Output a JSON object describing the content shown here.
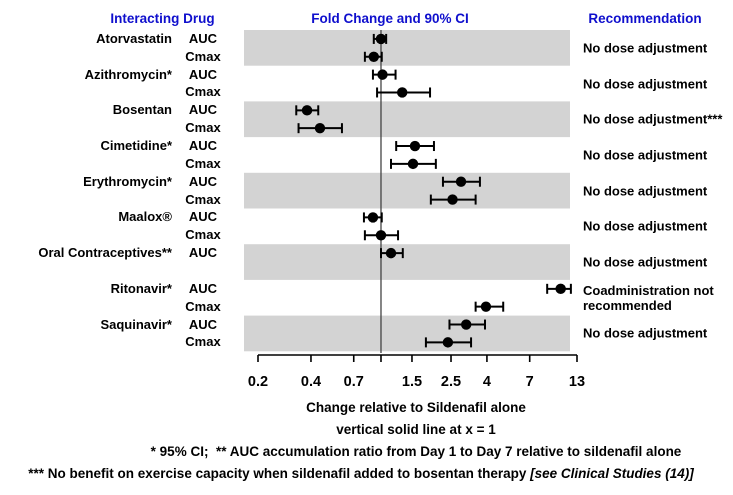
{
  "colors": {
    "header_text": "#0f0fcd",
    "band": "#d3d3d3",
    "data_black": "#000000",
    "ref_line": "#444444"
  },
  "headers": {
    "interacting_drug": "Interacting Drug",
    "recommendation": "Recommendation"
  },
  "captions": {
    "xlabel": "Change relative to Sildenafil alone",
    "ref_note": "vertical solid line at x = 1"
  },
  "footnotes": {
    "line1": "* 95% CI;  ** AUC accumulation ratio from Day 1 to Day 7 relative to sildenafil alone",
    "line2_main": "*** No benefit on exercise capacity when sildenafil added to bosentan therapy ",
    "line2_italic": "[see Clinical Studies (14)]"
  },
  "chart_data": {
    "type": "scatter",
    "subtype": "forest-plot-with-error-bars",
    "title": "Fold Change and 90% CI",
    "xlabel": "Change relative to Sildenafil alone",
    "x_scale": "log",
    "x_range": [
      0.2,
      13
    ],
    "x_ticks": [
      0.2,
      0.4,
      0.7,
      1,
      1.5,
      2.5,
      4,
      7,
      13
    ],
    "x_tick_labels": [
      "0.2",
      "0.4",
      "0.7",
      "",
      "1.5",
      "2.5",
      "4",
      "7",
      "13"
    ],
    "ref_line_x": 1,
    "grid": false,
    "legend": "none",
    "groups": [
      {
        "drug": "Atorvastatin",
        "shaded": true,
        "recommendation": "No dose adjustment",
        "rows": [
          {
            "metric": "AUC",
            "fold_change": 1.0,
            "ci_low": 0.91,
            "ci_high": 1.07
          },
          {
            "metric": "Cmax",
            "fold_change": 0.91,
            "ci_low": 0.81,
            "ci_high": 1.01
          }
        ]
      },
      {
        "drug": "Azithromycin*",
        "shaded": false,
        "recommendation": "No dose adjustment",
        "rows": [
          {
            "metric": "AUC",
            "fold_change": 1.02,
            "ci_low": 0.9,
            "ci_high": 1.21
          },
          {
            "metric": "Cmax",
            "fold_change": 1.32,
            "ci_low": 0.95,
            "ci_high": 1.9
          }
        ]
      },
      {
        "drug": "Bosentan",
        "shaded": true,
        "recommendation": "No dose adjustment***",
        "rows": [
          {
            "metric": "AUC",
            "fold_change": 0.38,
            "ci_low": 0.33,
            "ci_high": 0.44
          },
          {
            "metric": "Cmax",
            "fold_change": 0.45,
            "ci_low": 0.34,
            "ci_high": 0.6
          }
        ]
      },
      {
        "drug": "Cimetidine*",
        "shaded": false,
        "recommendation": "No dose adjustment",
        "rows": [
          {
            "metric": "AUC",
            "fold_change": 1.56,
            "ci_low": 1.22,
            "ci_high": 2.0
          },
          {
            "metric": "Cmax",
            "fold_change": 1.52,
            "ci_low": 1.14,
            "ci_high": 2.05
          }
        ]
      },
      {
        "drug": "Erythromycin*",
        "shaded": true,
        "recommendation": "No dose adjustment",
        "rows": [
          {
            "metric": "AUC",
            "fold_change": 2.85,
            "ci_low": 2.25,
            "ci_high": 3.65
          },
          {
            "metric": "Cmax",
            "fold_change": 2.55,
            "ci_low": 1.92,
            "ci_high": 3.45
          }
        ]
      },
      {
        "drug": "Maalox®",
        "shaded": false,
        "recommendation": "No dose adjustment",
        "rows": [
          {
            "metric": "AUC",
            "fold_change": 0.9,
            "ci_low": 0.8,
            "ci_high": 1.01
          },
          {
            "metric": "Cmax",
            "fold_change": 1.0,
            "ci_low": 0.81,
            "ci_high": 1.25
          }
        ]
      },
      {
        "drug": "Oral Contraceptives**",
        "shaded": true,
        "recommendation": "No dose adjustment",
        "rows": [
          {
            "metric": "AUC",
            "fold_change": 1.14,
            "ci_low": 1.0,
            "ci_high": 1.33
          }
        ]
      },
      {
        "drug": "Ritonavir*",
        "shaded": false,
        "recommendation": "Coadministration not recommended",
        "rows": [
          {
            "metric": "AUC",
            "fold_change": 10.5,
            "ci_low": 8.8,
            "ci_high": 12.0
          },
          {
            "metric": "Cmax",
            "fold_change": 3.95,
            "ci_low": 3.45,
            "ci_high": 4.95
          }
        ]
      },
      {
        "drug": "Saquinavir*",
        "shaded": true,
        "recommendation": "No dose adjustment",
        "rows": [
          {
            "metric": "AUC",
            "fold_change": 3.05,
            "ci_low": 2.45,
            "ci_high": 3.9
          },
          {
            "metric": "Cmax",
            "fold_change": 2.4,
            "ci_low": 1.8,
            "ci_high": 3.25
          }
        ]
      }
    ]
  }
}
